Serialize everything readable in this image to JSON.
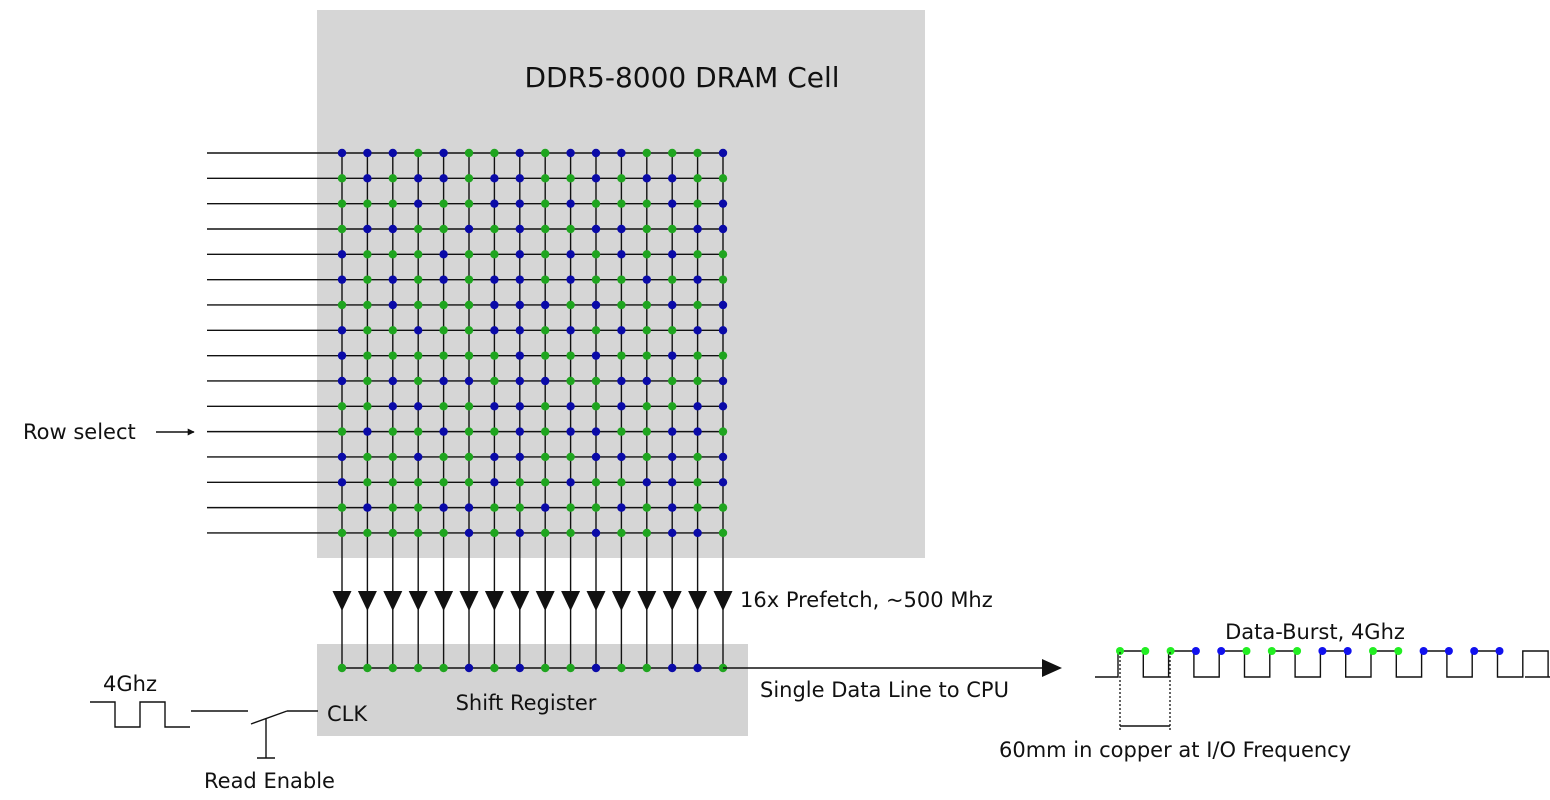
{
  "labels": {
    "title": "DDR5-8000 DRAM Cell",
    "row_select": "Row select",
    "prefetch": "16x Prefetch, ~500 Mhz",
    "shift_register": "Shift Register",
    "clk": "CLK",
    "clock_freq": "4Ghz",
    "read_enable": "Read Enable",
    "data_line": "Single Data Line to CPU",
    "data_burst": "Data-Burst, 4Ghz",
    "copper": "60mm in copper at I/O Frequency"
  },
  "colors": {
    "chip_fill": "#d6d6d6",
    "shift_fill": "#d3d3d3",
    "bit_one": "#1fa51f",
    "bit_zero": "#0a0aa8",
    "burst_one": "#22ee22",
    "burst_zero": "#1111ee",
    "line": "#111111"
  },
  "grid": {
    "rows": 16,
    "cols": 16,
    "bits": [
      [
        0,
        0,
        0,
        1,
        0,
        1,
        1,
        0,
        1,
        0,
        0,
        0,
        1,
        1,
        1,
        0
      ],
      [
        1,
        0,
        1,
        0,
        0,
        1,
        0,
        0,
        1,
        1,
        0,
        1,
        0,
        0,
        1,
        1
      ],
      [
        1,
        1,
        1,
        0,
        1,
        1,
        0,
        0,
        1,
        0,
        1,
        1,
        1,
        0,
        1,
        0
      ],
      [
        1,
        0,
        0,
        1,
        1,
        0,
        1,
        0,
        1,
        1,
        0,
        0,
        1,
        1,
        0,
        0
      ],
      [
        0,
        1,
        1,
        1,
        0,
        1,
        1,
        0,
        1,
        0,
        1,
        0,
        1,
        0,
        1,
        1
      ],
      [
        0,
        1,
        0,
        1,
        0,
        1,
        0,
        0,
        1,
        0,
        1,
        1,
        0,
        1,
        0,
        1
      ],
      [
        1,
        1,
        0,
        1,
        1,
        1,
        0,
        0,
        0,
        1,
        0,
        1,
        1,
        0,
        1,
        0
      ],
      [
        0,
        1,
        1,
        0,
        1,
        1,
        0,
        0,
        1,
        0,
        1,
        0,
        1,
        1,
        0,
        0
      ],
      [
        0,
        1,
        1,
        1,
        1,
        1,
        1,
        0,
        1,
        1,
        0,
        1,
        1,
        0,
        1,
        1
      ],
      [
        0,
        1,
        0,
        1,
        0,
        0,
        1,
        0,
        0,
        1,
        1,
        0,
        0,
        1,
        1,
        0
      ],
      [
        1,
        1,
        0,
        0,
        1,
        1,
        0,
        0,
        1,
        0,
        1,
        0,
        1,
        1,
        0,
        0
      ],
      [
        1,
        0,
        1,
        1,
        0,
        1,
        1,
        0,
        1,
        0,
        0,
        1,
        1,
        0,
        0,
        1
      ],
      [
        0,
        1,
        1,
        0,
        1,
        1,
        0,
        0,
        1,
        1,
        0,
        0,
        1,
        0,
        1,
        0
      ],
      [
        0,
        1,
        1,
        1,
        1,
        1,
        0,
        1,
        1,
        0,
        1,
        1,
        0,
        0,
        1,
        0
      ],
      [
        1,
        0,
        1,
        1,
        0,
        0,
        1,
        1,
        0,
        1,
        1,
        0,
        1,
        0,
        1,
        1
      ],
      [
        1,
        1,
        1,
        1,
        1,
        0,
        1,
        0,
        1,
        1,
        0,
        1,
        1,
        0,
        0,
        1
      ]
    ]
  },
  "shift_bits": [
    1,
    1,
    1,
    1,
    1,
    0,
    1,
    0,
    1,
    1,
    0,
    1,
    1,
    0,
    0,
    1
  ],
  "burst_bits": [
    1,
    1,
    1,
    0,
    0,
    1,
    1,
    1,
    0,
    0,
    1,
    1,
    0,
    0,
    0,
    0
  ]
}
